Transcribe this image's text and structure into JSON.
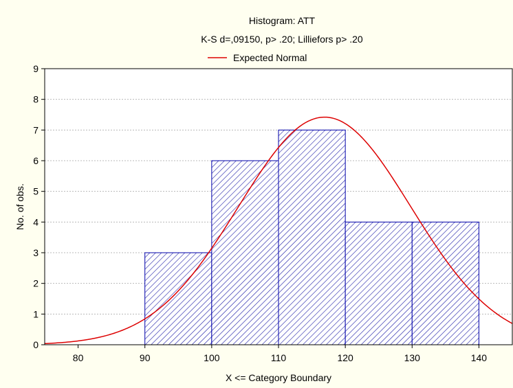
{
  "chart_data": {
    "type": "bar",
    "title": "Histogram: ATT",
    "subtitle": "K-S d=,09150, p> .20; Lilliefors p> .20",
    "xlabel": "X <= Category Boundary",
    "ylabel": "No. of obs.",
    "xlim": [
      75,
      145
    ],
    "ylim": [
      0,
      9
    ],
    "x_ticks": [
      80,
      90,
      100,
      110,
      120,
      130,
      140
    ],
    "y_ticks": [
      0,
      1,
      2,
      3,
      4,
      5,
      6,
      7,
      8,
      9
    ],
    "grid": true,
    "legend_position": "top-center",
    "bins": [
      {
        "from": 90,
        "to": 100,
        "count": 3
      },
      {
        "from": 100,
        "to": 110,
        "count": 6
      },
      {
        "from": 110,
        "to": 120,
        "count": 7
      },
      {
        "from": 120,
        "to": 130,
        "count": 4
      },
      {
        "from": 130,
        "to": 140,
        "count": 4
      }
    ],
    "series": [
      {
        "name": "Expected Normal",
        "type": "line",
        "mean": 116.9,
        "peak": 7.42,
        "sd": 12.9
      }
    ],
    "colors": {
      "background": "#fffff0",
      "plot_background": "#ffffff",
      "bar_fill": "#ffffff",
      "bar_hatch": "#1a1aa6",
      "bar_edge": "#0000aa",
      "curve": "#dd0000",
      "grid": "#b8b8b8"
    }
  }
}
